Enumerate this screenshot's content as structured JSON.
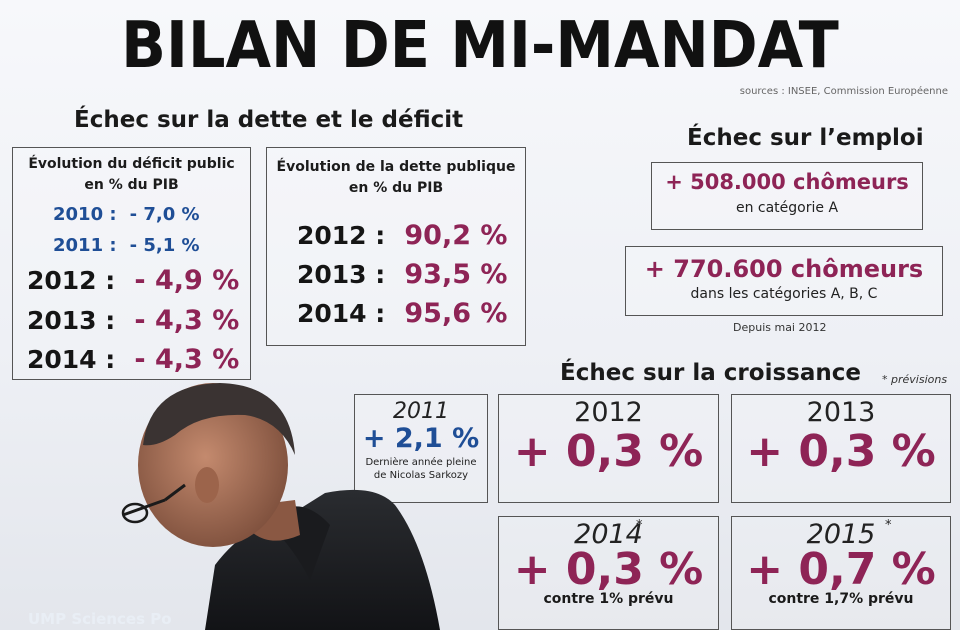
{
  "title": "BILAN DE MI-MANDAT",
  "sources": "sources : INSEE, Commission Européenne",
  "dette_section": {
    "title": "Échec sur la dette et le déficit",
    "deficit_box": {
      "heading_line1": "Évolution du déficit public",
      "heading_line2": "en % du PIB",
      "rows": [
        {
          "year": "2010 :",
          "value": "- 7,0 %"
        },
        {
          "year": "2011 :",
          "value": "- 5,1 %"
        },
        {
          "year": "2012 :",
          "value": "- 4,9 %"
        },
        {
          "year": "2013 :",
          "value": "- 4,3 %"
        },
        {
          "year": "2014 :",
          "value": "- 4,3 %"
        }
      ]
    },
    "dette_box": {
      "heading_line1": "Évolution de la dette publique",
      "heading_line2": "en % du PIB",
      "rows": [
        {
          "year": "2012 :",
          "value": "90,2 %"
        },
        {
          "year": "2013 :",
          "value": "93,5 %"
        },
        {
          "year": "2014 :",
          "value": "95,6 %"
        }
      ]
    }
  },
  "emploi_section": {
    "title": "Échec sur l’emploi",
    "box1": {
      "main": "+ 508.000 chômeurs",
      "sub": "en catégorie A"
    },
    "box2": {
      "main": "+ 770.600 chômeurs",
      "sub": "dans les catégories A, B, C"
    },
    "note": "Depuis mai 2012"
  },
  "croissance_section": {
    "title": "Échec sur la croissance",
    "previsions_note": "* prévisions",
    "box_2011": {
      "year": "2011",
      "value": "+ 2,1 %",
      "note_line1": "Dernière année pleine",
      "note_line2": "de Nicolas Sarkozy"
    },
    "box_2012": {
      "year": "2012",
      "value": "+ 0,3 %"
    },
    "box_2013": {
      "year": "2013",
      "value": "+ 0,3 %"
    },
    "box_2014": {
      "year": "2014",
      "star": "*",
      "value": "+ 0,3 %",
      "note": "contre 1% prévu"
    },
    "box_2015": {
      "year": "2015",
      "star": "*",
      "value": "+ 0,7 %",
      "note": "contre 1,7% prévu"
    }
  },
  "watermark": "UMP Sciences Po",
  "colors": {
    "accent_red": "#8e2456",
    "accent_blue": "#1f4e96"
  }
}
